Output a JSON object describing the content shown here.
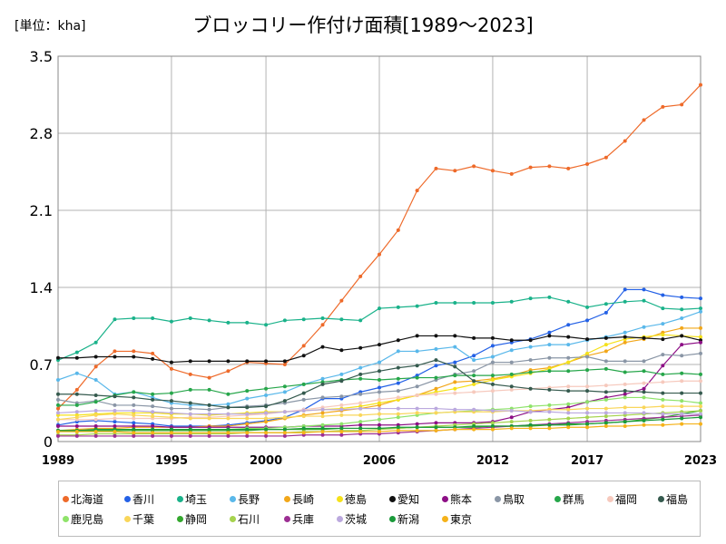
{
  "chart_data": {
    "type": "line",
    "title": "ブロッコリー作付け面積[1989～2023]",
    "unit_label": "[単位：kha]",
    "xlabel": "",
    "ylabel": "",
    "xlim": [
      1989,
      2023
    ],
    "ylim": [
      0,
      3.5
    ],
    "x_ticks": [
      "1989",
      "1995",
      "2000",
      "2006",
      "2012",
      "2017",
      "2023"
    ],
    "x_tick_values": [
      1989,
      1995,
      2000,
      2006,
      2012,
      2017,
      2023
    ],
    "y_ticks": [
      "0",
      "0.7",
      "1.4",
      "2.1",
      "2.8",
      "3.5"
    ],
    "y_tick_values": [
      0,
      0.7,
      1.4,
      2.1,
      2.8,
      3.5
    ],
    "grid": true,
    "legend_position": "bottom",
    "x": [
      1989,
      1990,
      1991,
      1992,
      1993,
      1994,
      1995,
      1996,
      1997,
      1998,
      1999,
      2000,
      2001,
      2002,
      2003,
      2004,
      2005,
      2006,
      2007,
      2008,
      2009,
      2010,
      2011,
      2012,
      2013,
      2014,
      2015,
      2016,
      2017,
      2018,
      2019,
      2020,
      2021,
      2022,
      2023
    ],
    "series": [
      {
        "name": "北海道",
        "color": "#ee6a2a",
        "values": [
          0.3,
          0.47,
          0.68,
          0.82,
          0.82,
          0.8,
          0.66,
          0.61,
          0.58,
          0.64,
          0.72,
          0.71,
          0.7,
          0.87,
          1.06,
          1.28,
          1.5,
          1.7,
          1.92,
          2.28,
          2.48,
          2.46,
          2.5,
          2.46,
          2.43,
          2.49,
          2.5,
          2.48,
          2.52,
          2.58,
          2.73,
          2.92,
          3.04,
          3.06,
          3.24
        ]
      },
      {
        "name": "香川",
        "color": "#2461e6",
        "values": [
          0.15,
          0.18,
          0.19,
          0.18,
          0.17,
          0.16,
          0.14,
          0.14,
          0.14,
          0.15,
          0.17,
          0.19,
          0.22,
          0.29,
          0.39,
          0.39,
          0.45,
          0.49,
          0.53,
          0.6,
          0.69,
          0.72,
          0.78,
          0.87,
          0.9,
          0.93,
          0.99,
          1.06,
          1.1,
          1.17,
          1.38,
          1.38,
          1.33,
          1.31,
          1.3
        ]
      },
      {
        "name": "埼玉",
        "color": "#1ab28a",
        "values": [
          0.74,
          0.81,
          0.9,
          1.11,
          1.12,
          1.12,
          1.09,
          1.12,
          1.1,
          1.08,
          1.08,
          1.06,
          1.1,
          1.11,
          1.12,
          1.11,
          1.1,
          1.21,
          1.22,
          1.23,
          1.26,
          1.26,
          1.26,
          1.26,
          1.27,
          1.3,
          1.31,
          1.27,
          1.22,
          1.25,
          1.27,
          1.28,
          1.21,
          1.2,
          1.21
        ]
      },
      {
        "name": "長野",
        "color": "#5ab8ea",
        "values": [
          0.56,
          0.62,
          0.56,
          0.43,
          0.45,
          0.4,
          0.35,
          0.33,
          0.33,
          0.34,
          0.39,
          0.42,
          0.45,
          0.52,
          0.57,
          0.61,
          0.67,
          0.72,
          0.82,
          0.82,
          0.84,
          0.86,
          0.74,
          0.77,
          0.83,
          0.86,
          0.88,
          0.88,
          0.92,
          0.95,
          0.99,
          1.04,
          1.07,
          1.12,
          1.18
        ]
      },
      {
        "name": "長崎",
        "color": "#f2a71a",
        "values": [
          0.1,
          0.11,
          0.12,
          0.12,
          0.13,
          0.13,
          0.13,
          0.13,
          0.14,
          0.14,
          0.16,
          0.18,
          0.21,
          0.24,
          0.26,
          0.28,
          0.3,
          0.33,
          0.38,
          0.42,
          0.48,
          0.54,
          0.55,
          0.57,
          0.6,
          0.65,
          0.67,
          0.72,
          0.78,
          0.82,
          0.9,
          0.93,
          0.99,
          1.03,
          1.03
        ]
      },
      {
        "name": "徳島",
        "color": "#f5e11a",
        "values": [
          0.24,
          0.24,
          0.25,
          0.26,
          0.26,
          0.26,
          0.25,
          0.25,
          0.24,
          0.25,
          0.26,
          0.27,
          0.27,
          0.28,
          0.29,
          0.3,
          0.32,
          0.35,
          0.38,
          0.42,
          0.45,
          0.48,
          0.52,
          0.56,
          0.59,
          0.62,
          0.66,
          0.72,
          0.8,
          0.88,
          0.93,
          0.95,
          0.97,
          0.96,
          0.95
        ]
      },
      {
        "name": "愛知",
        "color": "#111111",
        "values": [
          0.76,
          0.76,
          0.77,
          0.77,
          0.77,
          0.75,
          0.72,
          0.73,
          0.73,
          0.73,
          0.73,
          0.73,
          0.73,
          0.78,
          0.86,
          0.83,
          0.85,
          0.88,
          0.92,
          0.96,
          0.96,
          0.96,
          0.94,
          0.94,
          0.92,
          0.92,
          0.96,
          0.95,
          0.93,
          0.94,
          0.95,
          0.94,
          0.93,
          0.96,
          0.92
        ]
      },
      {
        "name": "熊本",
        "color": "#8d0f86",
        "values": [
          0.14,
          0.14,
          0.14,
          0.14,
          0.14,
          0.14,
          0.13,
          0.13,
          0.13,
          0.13,
          0.13,
          0.13,
          0.13,
          0.14,
          0.14,
          0.14,
          0.15,
          0.15,
          0.15,
          0.16,
          0.17,
          0.17,
          0.17,
          0.18,
          0.22,
          0.27,
          0.29,
          0.31,
          0.36,
          0.4,
          0.43,
          0.48,
          0.69,
          0.88,
          0.9
        ]
      },
      {
        "name": "鳥取",
        "color": "#8a96a6",
        "values": [
          0.38,
          0.35,
          0.37,
          0.33,
          0.33,
          0.32,
          0.3,
          0.3,
          0.29,
          0.31,
          0.32,
          0.33,
          0.35,
          0.38,
          0.4,
          0.41,
          0.43,
          0.45,
          0.46,
          0.5,
          0.56,
          0.61,
          0.64,
          0.72,
          0.72,
          0.74,
          0.76,
          0.76,
          0.77,
          0.73,
          0.73,
          0.73,
          0.79,
          0.78,
          0.8
        ]
      },
      {
        "name": "群馬",
        "color": "#26a64a",
        "values": [
          0.33,
          0.33,
          0.36,
          0.42,
          0.45,
          0.43,
          0.44,
          0.47,
          0.47,
          0.43,
          0.46,
          0.48,
          0.5,
          0.52,
          0.54,
          0.56,
          0.57,
          0.56,
          0.57,
          0.58,
          0.58,
          0.6,
          0.6,
          0.6,
          0.61,
          0.63,
          0.64,
          0.64,
          0.65,
          0.66,
          0.63,
          0.64,
          0.61,
          0.62,
          0.61
        ]
      },
      {
        "name": "福岡",
        "color": "#f6c9bd",
        "values": [
          0.2,
          0.2,
          0.2,
          0.21,
          0.21,
          0.21,
          0.21,
          0.22,
          0.22,
          0.23,
          0.24,
          0.25,
          0.27,
          0.29,
          0.31,
          0.33,
          0.35,
          0.38,
          0.4,
          0.42,
          0.43,
          0.44,
          0.45,
          0.46,
          0.47,
          0.48,
          0.49,
          0.5,
          0.5,
          0.51,
          0.52,
          0.53,
          0.54,
          0.55,
          0.55
        ]
      },
      {
        "name": "福島",
        "color": "#355a4e",
        "values": [
          0.43,
          0.43,
          0.42,
          0.41,
          0.4,
          0.38,
          0.37,
          0.35,
          0.33,
          0.31,
          0.31,
          0.32,
          0.37,
          0.44,
          0.52,
          0.55,
          0.61,
          0.64,
          0.67,
          0.69,
          0.74,
          0.68,
          0.55,
          0.52,
          0.5,
          0.48,
          0.47,
          0.46,
          0.46,
          0.45,
          0.46,
          0.45,
          0.44,
          0.44,
          0.44
        ]
      },
      {
        "name": "鹿児島",
        "color": "#8fe36a",
        "values": [
          0.09,
          0.09,
          0.1,
          0.1,
          0.1,
          0.1,
          0.1,
          0.11,
          0.11,
          0.11,
          0.12,
          0.12,
          0.13,
          0.14,
          0.15,
          0.16,
          0.18,
          0.2,
          0.22,
          0.24,
          0.26,
          0.27,
          0.28,
          0.29,
          0.3,
          0.32,
          0.33,
          0.34,
          0.36,
          0.38,
          0.4,
          0.4,
          0.38,
          0.37,
          0.35
        ]
      },
      {
        "name": "千葉",
        "color": "#f9d65a",
        "values": [
          0.2,
          0.22,
          0.24,
          0.25,
          0.24,
          0.23,
          0.22,
          0.21,
          0.21,
          0.21,
          0.21,
          0.21,
          0.22,
          0.23,
          0.23,
          0.24,
          0.24,
          0.25,
          0.25,
          0.26,
          0.26,
          0.27,
          0.27,
          0.27,
          0.28,
          0.28,
          0.29,
          0.29,
          0.3,
          0.3,
          0.31,
          0.31,
          0.32,
          0.32,
          0.32
        ]
      },
      {
        "name": "静岡",
        "color": "#34a82e",
        "values": [
          0.1,
          0.1,
          0.1,
          0.1,
          0.1,
          0.1,
          0.1,
          0.1,
          0.1,
          0.1,
          0.1,
          0.11,
          0.11,
          0.11,
          0.11,
          0.12,
          0.12,
          0.12,
          0.12,
          0.13,
          0.13,
          0.13,
          0.13,
          0.14,
          0.14,
          0.14,
          0.15,
          0.15,
          0.16,
          0.17,
          0.18,
          0.2,
          0.22,
          0.25,
          0.28
        ]
      },
      {
        "name": "石川",
        "color": "#a6d34e",
        "values": [
          0.06,
          0.06,
          0.07,
          0.07,
          0.07,
          0.07,
          0.07,
          0.07,
          0.07,
          0.07,
          0.08,
          0.08,
          0.08,
          0.09,
          0.09,
          0.1,
          0.1,
          0.11,
          0.12,
          0.13,
          0.14,
          0.15,
          0.16,
          0.17,
          0.18,
          0.19,
          0.2,
          0.21,
          0.22,
          0.23,
          0.24,
          0.25,
          0.26,
          0.27,
          0.28
        ]
      },
      {
        "name": "兵庫",
        "color": "#9c2f93",
        "values": [
          0.05,
          0.05,
          0.05,
          0.05,
          0.05,
          0.05,
          0.05,
          0.05,
          0.05,
          0.05,
          0.05,
          0.05,
          0.05,
          0.06,
          0.06,
          0.06,
          0.07,
          0.07,
          0.08,
          0.09,
          0.1,
          0.11,
          0.12,
          0.13,
          0.14,
          0.15,
          0.16,
          0.17,
          0.18,
          0.19,
          0.2,
          0.21,
          0.22,
          0.23,
          0.24
        ]
      },
      {
        "name": "茨城",
        "color": "#bba9de",
        "values": [
          0.26,
          0.27,
          0.28,
          0.28,
          0.28,
          0.27,
          0.26,
          0.25,
          0.25,
          0.25,
          0.25,
          0.26,
          0.27,
          0.28,
          0.29,
          0.29,
          0.3,
          0.3,
          0.3,
          0.3,
          0.3,
          0.29,
          0.29,
          0.28,
          0.28,
          0.27,
          0.27,
          0.26,
          0.26,
          0.26,
          0.26,
          0.26,
          0.25,
          0.25,
          0.25
        ]
      },
      {
        "name": "新潟",
        "color": "#1a9a3a",
        "values": [
          0.1,
          0.1,
          0.11,
          0.11,
          0.11,
          0.11,
          0.11,
          0.11,
          0.11,
          0.11,
          0.11,
          0.11,
          0.11,
          0.12,
          0.12,
          0.12,
          0.12,
          0.12,
          0.13,
          0.13,
          0.13,
          0.13,
          0.14,
          0.14,
          0.14,
          0.15,
          0.15,
          0.16,
          0.16,
          0.17,
          0.18,
          0.19,
          0.2,
          0.21,
          0.22
        ]
      },
      {
        "name": "東京",
        "color": "#f5b21a",
        "values": [
          0.09,
          0.09,
          0.09,
          0.09,
          0.08,
          0.08,
          0.08,
          0.08,
          0.08,
          0.08,
          0.08,
          0.08,
          0.08,
          0.08,
          0.09,
          0.09,
          0.09,
          0.09,
          0.1,
          0.1,
          0.1,
          0.11,
          0.11,
          0.11,
          0.12,
          0.12,
          0.12,
          0.13,
          0.13,
          0.14,
          0.14,
          0.15,
          0.15,
          0.16,
          0.16
        ]
      }
    ]
  }
}
